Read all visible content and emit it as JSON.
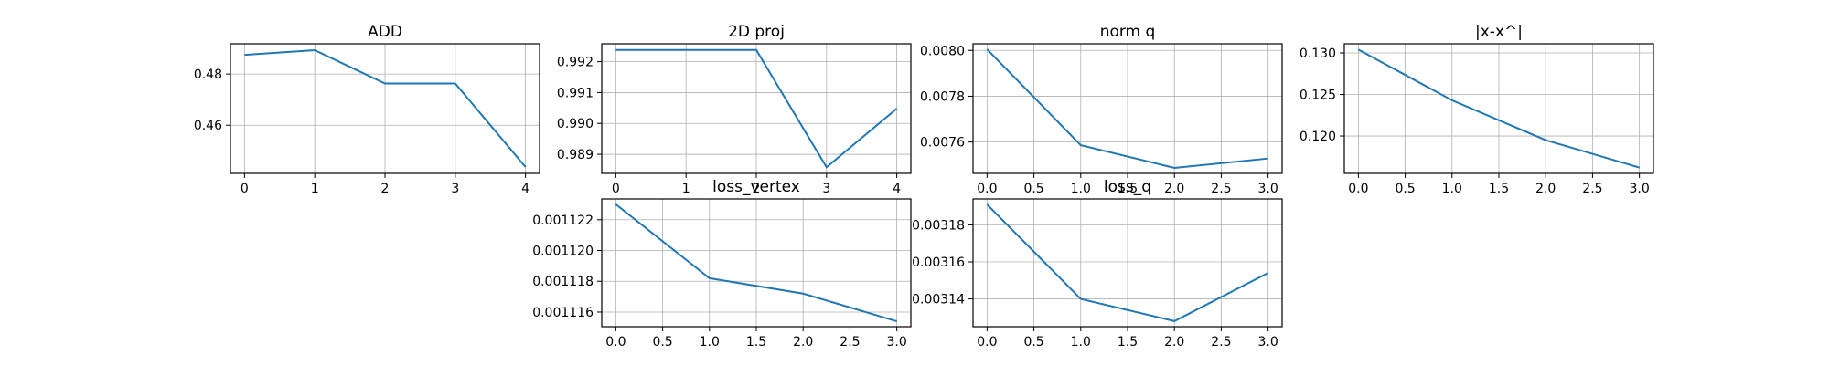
{
  "chart_data": [
    {
      "type": "line",
      "title": "ADD",
      "x": [
        0,
        1,
        2,
        3,
        4
      ],
      "series": [
        {
          "values": [
            0.4875,
            0.4893,
            0.4763,
            0.4763,
            0.4437
          ]
        }
      ],
      "xlim": [
        -0.2,
        4.2
      ],
      "ylim": [
        0.4412,
        0.4918
      ],
      "xticks": [
        0,
        1,
        2,
        3,
        4
      ],
      "xtick_labels": [
        "0",
        "1",
        "2",
        "3",
        "4"
      ],
      "yticks": [
        0.46,
        0.48
      ],
      "ytick_labels": [
        "0.46",
        "0.48"
      ],
      "color": "#1f77b4",
      "grid": true
    },
    {
      "type": "line",
      "title": "2D proj",
      "x": [
        0,
        1,
        2,
        3,
        4
      ],
      "series": [
        {
          "values": [
            0.99238,
            0.99238,
            0.99238,
            0.98858,
            0.99048
          ]
        }
      ],
      "xlim": [
        -0.2,
        4.2
      ],
      "ylim": [
        0.98838,
        0.99258
      ],
      "xticks": [
        0,
        1,
        2,
        3,
        4
      ],
      "xtick_labels": [
        "0",
        "1",
        "2",
        "3",
        "4"
      ],
      "yticks": [
        0.989,
        0.99,
        0.991,
        0.992
      ],
      "ytick_labels": [
        "0.989",
        "0.990",
        "0.991",
        "0.992"
      ],
      "color": "#1f77b4",
      "grid": true
    },
    {
      "type": "line",
      "title": "norm q",
      "x": [
        0,
        1,
        2,
        3
      ],
      "series": [
        {
          "values": [
            0.008005,
            0.007586,
            0.007487,
            0.007528
          ]
        }
      ],
      "xlim": [
        -0.15,
        3.15
      ],
      "ylim": [
        0.007463,
        0.008029
      ],
      "xticks": [
        0,
        0.5,
        1,
        1.5,
        2,
        2.5,
        3
      ],
      "xtick_labels": [
        "0.0",
        "0.5",
        "1.0",
        "1.5",
        "2.0",
        "2.5",
        "3.0"
      ],
      "yticks": [
        0.0076,
        0.0078,
        0.008
      ],
      "ytick_labels": [
        "0.0076",
        "0.0078",
        "0.0080"
      ],
      "color": "#1f77b4",
      "grid": true
    },
    {
      "type": "line",
      "title": "|x-x^|",
      "x": [
        0,
        1,
        2,
        3
      ],
      "series": [
        {
          "values": [
            0.1304,
            0.1243,
            0.1195,
            0.1162
          ]
        }
      ],
      "xlim": [
        -0.15,
        3.15
      ],
      "ylim": [
        0.1155,
        0.1311
      ],
      "xticks": [
        0,
        0.5,
        1,
        1.5,
        2,
        2.5,
        3
      ],
      "xtick_labels": [
        "0.0",
        "0.5",
        "1.0",
        "1.5",
        "2.0",
        "2.5",
        "3.0"
      ],
      "yticks": [
        0.12,
        0.125,
        0.13
      ],
      "ytick_labels": [
        "0.120",
        "0.125",
        "0.130"
      ],
      "color": "#1f77b4",
      "grid": true
    },
    {
      "type": "line",
      "title": "loss_vertex",
      "x": [
        0,
        1,
        2,
        3
      ],
      "series": [
        {
          "values": [
            0.001123,
            0.0011182,
            0.0011172,
            0.0011154
          ]
        }
      ],
      "xlim": [
        -0.15,
        3.15
      ],
      "ylim": [
        0.00111505,
        0.00112335
      ],
      "xticks": [
        0,
        0.5,
        1,
        1.5,
        2,
        2.5,
        3
      ],
      "xtick_labels": [
        "0.0",
        "0.5",
        "1.0",
        "1.5",
        "2.0",
        "2.5",
        "3.0"
      ],
      "yticks": [
        0.001116,
        0.001118,
        0.00112,
        0.001122
      ],
      "ytick_labels": [
        "0.001116",
        "0.001118",
        "0.001120",
        "0.001122"
      ],
      "color": "#1f77b4",
      "grid": true
    },
    {
      "type": "line",
      "title": "loss_q",
      "x": [
        0,
        1,
        2,
        3
      ],
      "series": [
        {
          "values": [
            0.003191,
            0.00314,
            0.003128,
            0.003154
          ]
        }
      ],
      "xlim": [
        -0.15,
        3.15
      ],
      "ylim": [
        0.003125,
        0.003194
      ],
      "xticks": [
        0,
        0.5,
        1,
        1.5,
        2,
        2.5,
        3
      ],
      "xtick_labels": [
        "0.0",
        "0.5",
        "1.0",
        "1.5",
        "2.0",
        "2.5",
        "3.0"
      ],
      "yticks": [
        0.00314,
        0.00316,
        0.00318
      ],
      "ytick_labels": [
        "0.00314",
        "0.00316",
        "0.00318"
      ],
      "color": "#1f77b4",
      "grid": true
    }
  ]
}
